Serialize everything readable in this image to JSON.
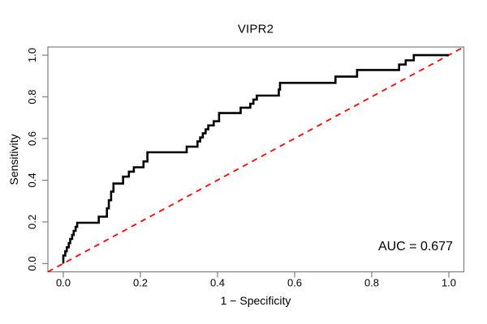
{
  "figure": {
    "title": "VIPR2",
    "xlabel": "1 − Specificity",
    "ylabel": "Sensitivity",
    "auc_label": "AUC = 0.677"
  },
  "axes": {
    "x_tick_labels": [
      "0.0",
      "0.2",
      "0.4",
      "0.6",
      "0.8",
      "1.0"
    ],
    "y_tick_labels": [
      "0.0",
      "0.2",
      "0.4",
      "0.6",
      "0.8",
      "1.0"
    ],
    "x_tick_values": [
      0,
      0.2,
      0.4,
      0.6,
      0.8,
      1.0
    ],
    "y_tick_values": [
      0,
      0.2,
      0.4,
      0.6,
      0.8,
      1.0
    ]
  },
  "colors": {
    "curve": "#000000",
    "diagonal": "#ff0000",
    "axis": "#808080",
    "text": "#000000",
    "background": "#ffffff"
  },
  "chart_data": {
    "type": "line",
    "subtype": "roc-step-curve",
    "title": "VIPR2",
    "xlabel": "1 − Specificity",
    "ylabel": "Sensitivity",
    "xlim": [
      0,
      1
    ],
    "ylim": [
      0,
      1
    ],
    "grid": false,
    "auc": 0.677,
    "annotations": [
      {
        "text": "AUC = 0.677",
        "position": "bottom-right"
      }
    ],
    "series": [
      {
        "name": "ROC curve",
        "line": "solid",
        "color": "#000000",
        "points": [
          [
            0.0,
            0.0
          ],
          [
            0.0,
            0.039
          ],
          [
            0.005,
            0.039
          ],
          [
            0.005,
            0.059
          ],
          [
            0.009,
            0.059
          ],
          [
            0.009,
            0.078
          ],
          [
            0.014,
            0.078
          ],
          [
            0.014,
            0.098
          ],
          [
            0.018,
            0.098
          ],
          [
            0.018,
            0.118
          ],
          [
            0.023,
            0.118
          ],
          [
            0.023,
            0.137
          ],
          [
            0.027,
            0.137
          ],
          [
            0.027,
            0.157
          ],
          [
            0.032,
            0.157
          ],
          [
            0.032,
            0.176
          ],
          [
            0.036,
            0.176
          ],
          [
            0.036,
            0.196
          ],
          [
            0.041,
            0.196
          ],
          [
            0.092,
            0.196
          ],
          [
            0.092,
            0.225
          ],
          [
            0.113,
            0.225
          ],
          [
            0.113,
            0.265
          ],
          [
            0.118,
            0.265
          ],
          [
            0.118,
            0.304
          ],
          [
            0.124,
            0.304
          ],
          [
            0.124,
            0.345
          ],
          [
            0.13,
            0.345
          ],
          [
            0.13,
            0.384
          ],
          [
            0.155,
            0.384
          ],
          [
            0.155,
            0.417
          ],
          [
            0.17,
            0.417
          ],
          [
            0.17,
            0.441
          ],
          [
            0.183,
            0.441
          ],
          [
            0.183,
            0.462
          ],
          [
            0.208,
            0.462
          ],
          [
            0.208,
            0.49
          ],
          [
            0.218,
            0.49
          ],
          [
            0.218,
            0.534
          ],
          [
            0.32,
            0.534
          ],
          [
            0.32,
            0.561
          ],
          [
            0.348,
            0.561
          ],
          [
            0.348,
            0.586
          ],
          [
            0.355,
            0.586
          ],
          [
            0.355,
            0.605
          ],
          [
            0.362,
            0.605
          ],
          [
            0.362,
            0.625
          ],
          [
            0.369,
            0.625
          ],
          [
            0.369,
            0.644
          ],
          [
            0.376,
            0.644
          ],
          [
            0.376,
            0.663
          ],
          [
            0.39,
            0.663
          ],
          [
            0.39,
            0.683
          ],
          [
            0.404,
            0.683
          ],
          [
            0.404,
            0.722
          ],
          [
            0.46,
            0.722
          ],
          [
            0.46,
            0.748
          ],
          [
            0.485,
            0.748
          ],
          [
            0.485,
            0.767
          ],
          [
            0.493,
            0.767
          ],
          [
            0.493,
            0.787
          ],
          [
            0.502,
            0.787
          ],
          [
            0.502,
            0.806
          ],
          [
            0.559,
            0.806
          ],
          [
            0.559,
            0.835
          ],
          [
            0.562,
            0.835
          ],
          [
            0.562,
            0.867
          ],
          [
            0.706,
            0.867
          ],
          [
            0.706,
            0.897
          ],
          [
            0.762,
            0.897
          ],
          [
            0.762,
            0.929
          ],
          [
            0.871,
            0.929
          ],
          [
            0.871,
            0.955
          ],
          [
            0.888,
            0.955
          ],
          [
            0.888,
            0.975
          ],
          [
            0.909,
            0.975
          ],
          [
            0.909,
            1.0
          ],
          [
            1.0,
            1.0
          ]
        ]
      },
      {
        "name": "chance diagonal",
        "line": "dashed",
        "color": "#ff0000",
        "points": [
          [
            0,
            0
          ],
          [
            1,
            1
          ]
        ]
      }
    ],
    "legend": null
  }
}
